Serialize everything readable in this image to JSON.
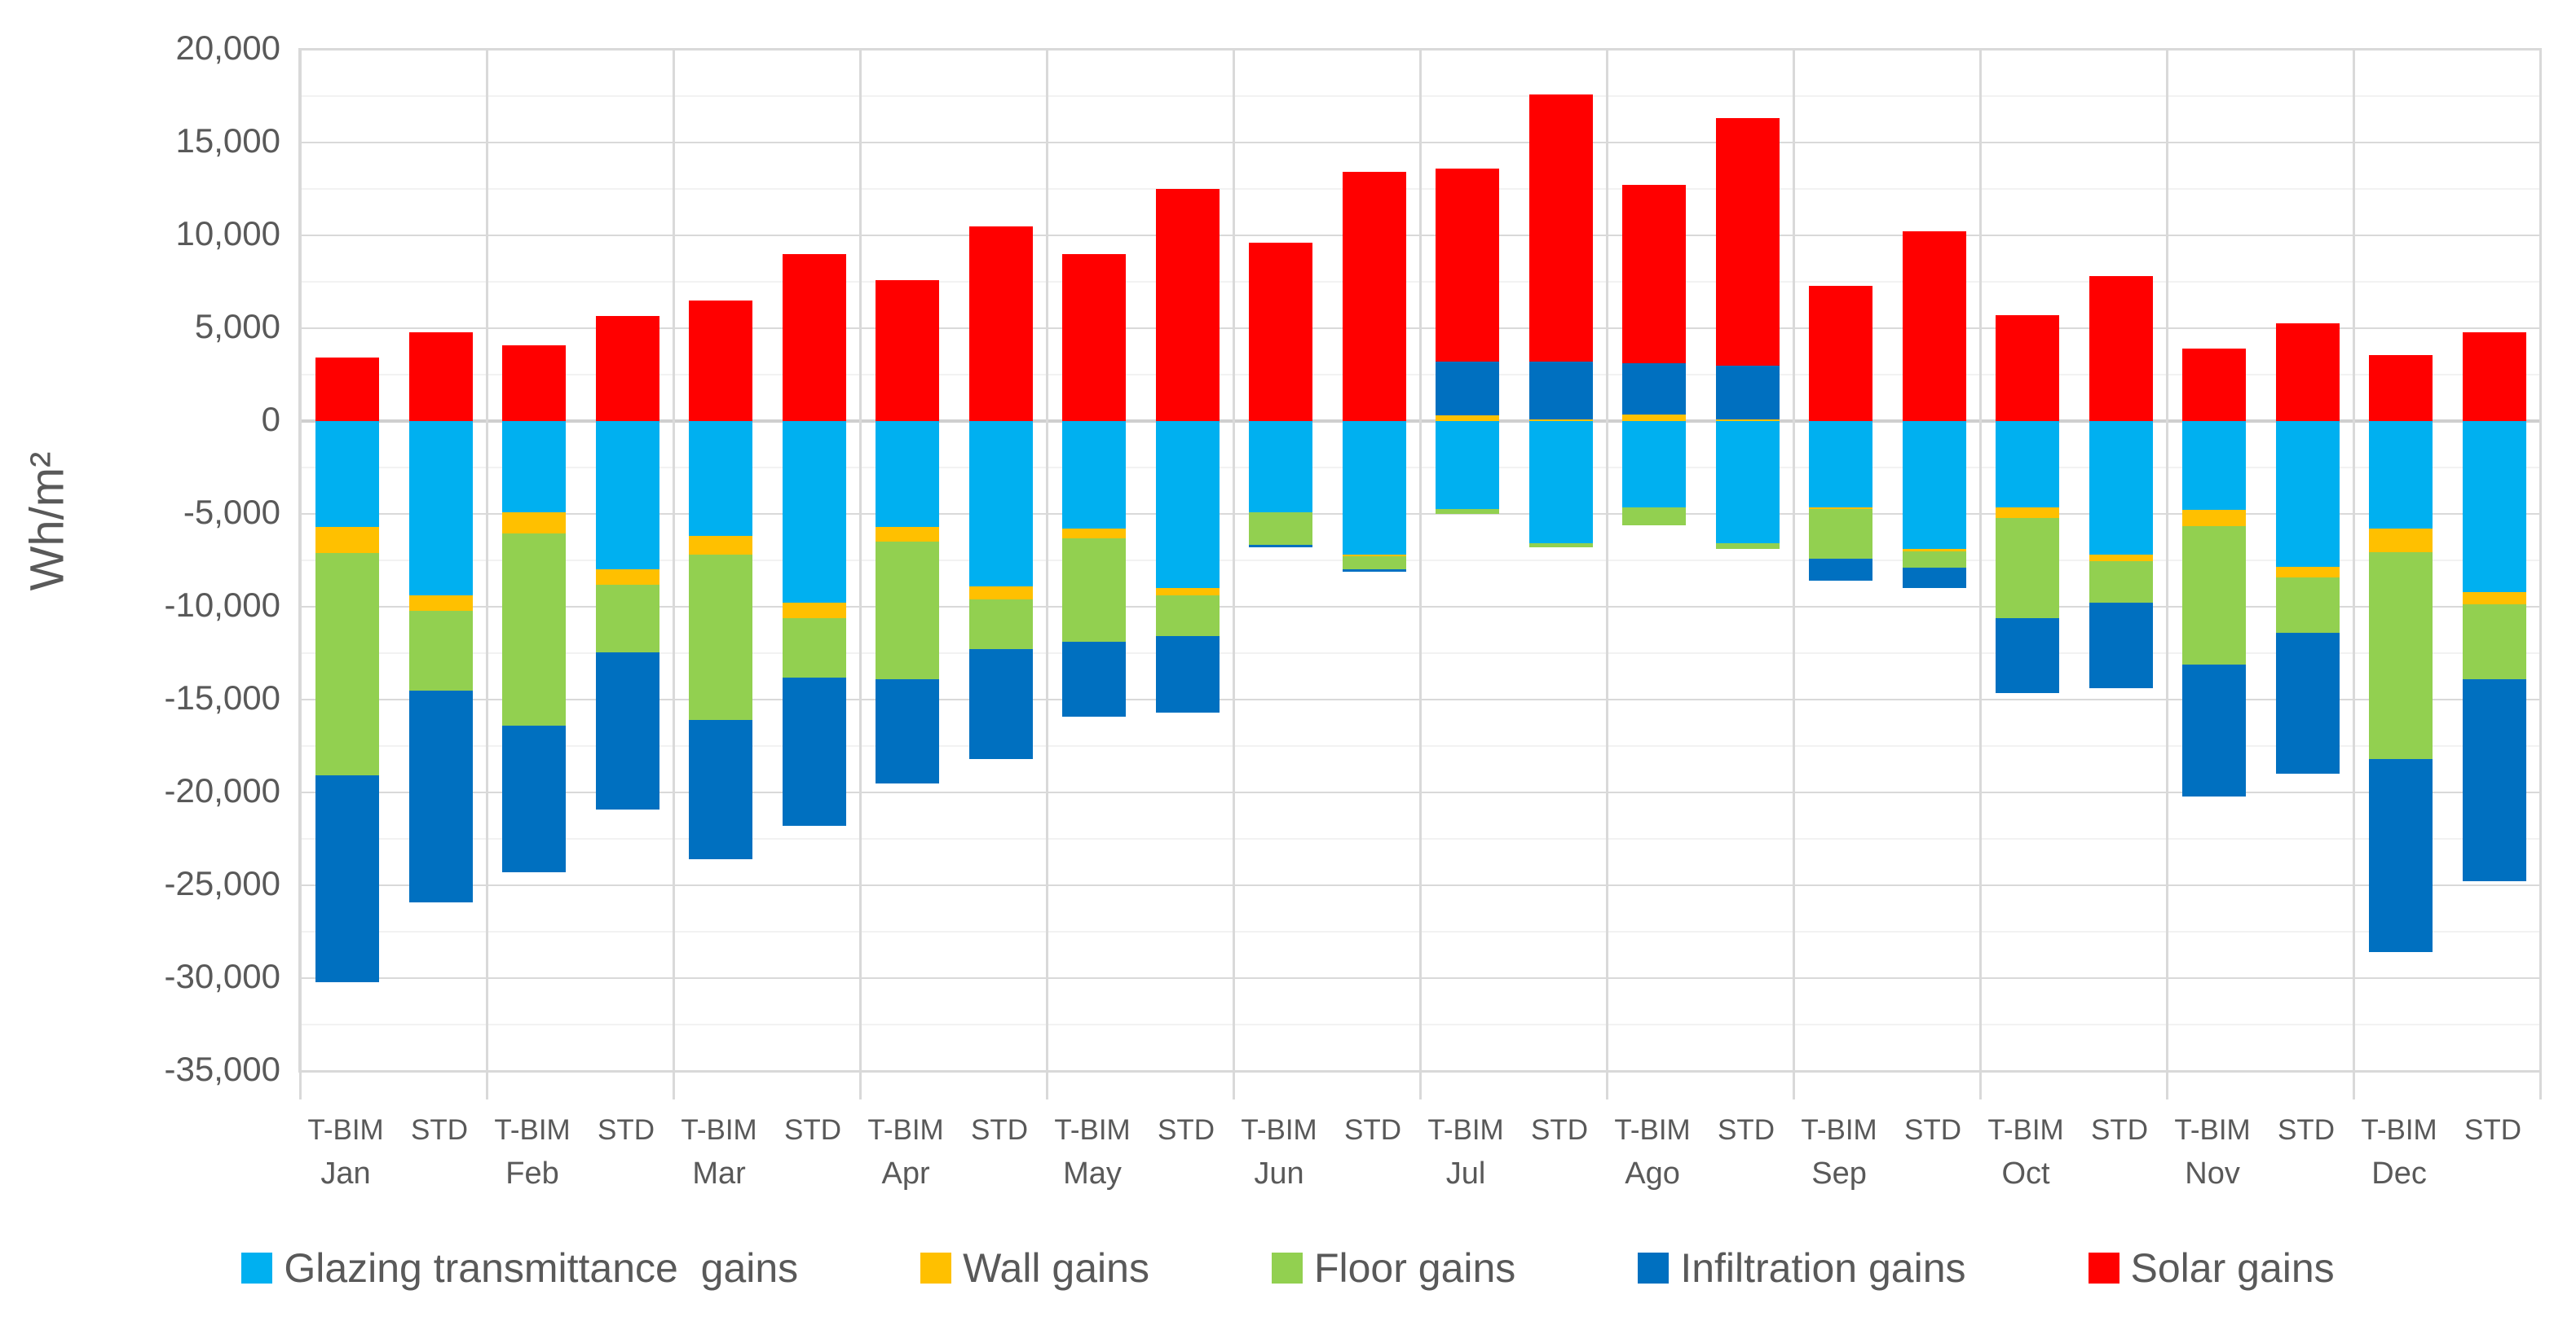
{
  "axis": {
    "y_title": "Wh/m²"
  },
  "chart_data": {
    "type": "bar",
    "stacked": true,
    "title": "",
    "ylabel": "Wh/m²",
    "ylim": [
      -35000,
      20000
    ],
    "major_tick": 5000,
    "minor_tick": 2500,
    "grid": true,
    "legend_position": "bottom",
    "bar_labels": [
      "T-BIM",
      "STD"
    ],
    "series": [
      {
        "key": "glazing",
        "label": "Glazing transmittance  gains",
        "color": "#00B0F0"
      },
      {
        "key": "wall",
        "label": "Wall gains",
        "color": "#FFC000"
      },
      {
        "key": "floor",
        "label": "Floor gains",
        "color": "#92D050"
      },
      {
        "key": "infiltration",
        "label": "Infiltration gains",
        "color": "#0070C0"
      },
      {
        "key": "solar",
        "label": "Solar gains",
        "color": "#FF0000"
      }
    ],
    "groups": [
      {
        "month": "Jan",
        "bars": [
          {
            "label": "T-BIM",
            "values": {
              "glazing": -5700,
              "wall": -1400,
              "floor": -12000,
              "infiltration": -11100,
              "solar": 3400
            }
          },
          {
            "label": "STD",
            "values": {
              "glazing": -9400,
              "wall": -800,
              "floor": -4300,
              "infiltration": -11400,
              "solar": 4800
            }
          }
        ]
      },
      {
        "month": "Feb",
        "bars": [
          {
            "label": "T-BIM",
            "values": {
              "glazing": -4900,
              "wall": -1150,
              "floor": -10350,
              "infiltration": -7900,
              "solar": 4100
            }
          },
          {
            "label": "STD",
            "values": {
              "glazing": -8000,
              "wall": -800,
              "floor": -3650,
              "infiltration": -8450,
              "solar": 5650
            }
          }
        ]
      },
      {
        "month": "Mar",
        "bars": [
          {
            "label": "T-BIM",
            "values": {
              "glazing": -6200,
              "wall": -1000,
              "floor": -8900,
              "infiltration": -7500,
              "solar": 6500
            }
          },
          {
            "label": "STD",
            "values": {
              "glazing": -9800,
              "wall": -800,
              "floor": -3200,
              "infiltration": -8000,
              "solar": 9000
            }
          }
        ]
      },
      {
        "month": "Apr",
        "bars": [
          {
            "label": "T-BIM",
            "values": {
              "glazing": -5700,
              "wall": -800,
              "floor": -7400,
              "infiltration": -5600,
              "solar": 7600
            }
          },
          {
            "label": "STD",
            "values": {
              "glazing": -8900,
              "wall": -700,
              "floor": -2700,
              "infiltration": -5900,
              "solar": 10500
            }
          }
        ]
      },
      {
        "month": "May",
        "bars": [
          {
            "label": "T-BIM",
            "values": {
              "glazing": -5800,
              "wall": -500,
              "floor": -5600,
              "infiltration": -4000,
              "solar": 9000
            }
          },
          {
            "label": "STD",
            "values": {
              "glazing": -9000,
              "wall": -400,
              "floor": -2200,
              "infiltration": -4100,
              "solar": 12500
            }
          }
        ]
      },
      {
        "month": "Jun",
        "bars": [
          {
            "label": "T-BIM",
            "values": {
              "glazing": -4900,
              "wall": 0,
              "floor": -1750,
              "infiltration": -150,
              "solar": 9600
            }
          },
          {
            "label": "STD",
            "values": {
              "glazing": -7200,
              "wall": -100,
              "floor": -700,
              "infiltration": -100,
              "solar": 13400
            }
          }
        ]
      },
      {
        "month": "Jul",
        "bars": [
          {
            "label": "T-BIM",
            "values": {
              "glazing": -4750,
              "wall": 300,
              "floor": -250,
              "infiltration": 2900,
              "solar": 10400
            }
          },
          {
            "label": "STD",
            "values": {
              "glazing": -6600,
              "wall": 100,
              "floor": -200,
              "infiltration": 3100,
              "solar": 14400
            }
          }
        ]
      },
      {
        "month": "Ago",
        "bars": [
          {
            "label": "T-BIM",
            "values": {
              "glazing": -4650,
              "wall": 350,
              "floor": -950,
              "infiltration": 2750,
              "solar": 9600
            }
          },
          {
            "label": "STD",
            "values": {
              "glazing": -6600,
              "wall": 100,
              "floor": -300,
              "infiltration": 2900,
              "solar": 13300
            }
          }
        ]
      },
      {
        "month": "Sep",
        "bars": [
          {
            "label": "T-BIM",
            "values": {
              "glazing": -4650,
              "wall": -100,
              "floor": -2650,
              "infiltration": -1200,
              "solar": 7300
            }
          },
          {
            "label": "STD",
            "values": {
              "glazing": -6900,
              "wall": -100,
              "floor": -900,
              "infiltration": -1100,
              "solar": 10200
            }
          }
        ]
      },
      {
        "month": "Oct",
        "bars": [
          {
            "label": "T-BIM",
            "values": {
              "glazing": -4650,
              "wall": -550,
              "floor": -5400,
              "infiltration": -4050,
              "solar": 5700
            }
          },
          {
            "label": "STD",
            "values": {
              "glazing": -7200,
              "wall": -350,
              "floor": -2250,
              "infiltration": -4600,
              "solar": 7800
            }
          }
        ]
      },
      {
        "month": "Nov",
        "bars": [
          {
            "label": "T-BIM",
            "values": {
              "glazing": -4800,
              "wall": -850,
              "floor": -7450,
              "infiltration": -7100,
              "solar": 3900
            }
          },
          {
            "label": "STD",
            "values": {
              "glazing": -7850,
              "wall": -550,
              "floor": -3000,
              "infiltration": -7600,
              "solar": 5250
            }
          }
        ]
      },
      {
        "month": "Dec",
        "bars": [
          {
            "label": "T-BIM",
            "values": {
              "glazing": -5800,
              "wall": -1250,
              "floor": -11150,
              "infiltration": -10400,
              "solar": 3550
            }
          },
          {
            "label": "STD",
            "values": {
              "glazing": -9200,
              "wall": -650,
              "floor": -4050,
              "infiltration": -10900,
              "solar": 4800
            }
          }
        ]
      }
    ]
  }
}
